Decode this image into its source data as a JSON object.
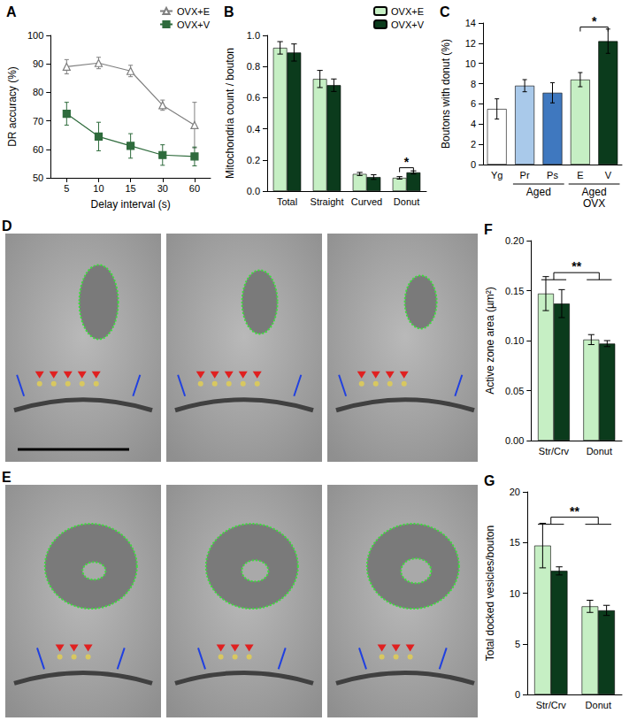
{
  "chart_data": [
    {
      "title": "A",
      "type": "line",
      "categories": [
        "5",
        "10",
        "15",
        "30",
        "60"
      ],
      "x_label": "Delay interval (s)",
      "y_label": "DR accuracy (%)",
      "ylim": [
        50,
        100
      ],
      "yticks": [
        50,
        60,
        70,
        80,
        90,
        100
      ],
      "grid": false,
      "legend": "upper right",
      "series": [
        {
          "name": "OVX+E",
          "color": "#7f7f7f",
          "marker": "open-triangle",
          "values": [
            89,
            90.3,
            87.5,
            75.5,
            68.5
          ],
          "errors": [
            2.5,
            2,
            2,
            1.8,
            8
          ]
        },
        {
          "name": "OVX+V",
          "color": "#2e6b3c",
          "marker": "square",
          "values": [
            72.5,
            64.5,
            61.2,
            58,
            57.5
          ],
          "errors": [
            4,
            5,
            4.3,
            3.6,
            3.3
          ]
        }
      ]
    },
    {
      "title": "B",
      "type": "bar",
      "categories": [
        "Total",
        "Straight",
        "Curved",
        "Donut"
      ],
      "y_label": "Mitochondria count / bouton",
      "ylim": [
        0,
        1
      ],
      "yticks": [
        {
          "value": 0,
          "label": "0.0"
        },
        0.2,
        0.4,
        0.6,
        0.8,
        {
          "value": 1,
          "label": "1.0"
        }
      ],
      "grid": false,
      "legend": "upper right",
      "series": [
        {
          "name": "OVX+E",
          "color": "#c6efc4",
          "values": [
            0.92,
            0.72,
            0.11,
            0.085
          ],
          "errors": [
            0.04,
            0.055,
            0.01,
            0.008
          ]
        },
        {
          "name": "OVX+V",
          "color": "#0b3b1c",
          "values": [
            0.89,
            0.68,
            0.09,
            0.12
          ],
          "errors": [
            0.055,
            0.04,
            0.015,
            0.01
          ]
        }
      ],
      "annotations": [
        {
          "text": "*",
          "categories": [
            "Donut"
          ],
          "y": 0.15
        }
      ]
    },
    {
      "title": "C",
      "type": "bar",
      "categories": [
        "Yg",
        "Pr",
        "Ps",
        "E",
        "V"
      ],
      "y_label": "Boutons with donut (%)",
      "ylim": [
        0,
        14
      ],
      "yticks": [
        0,
        2,
        4,
        6,
        8,
        10,
        12,
        14
      ],
      "grid": false,
      "values": [
        5.5,
        7.8,
        7.1,
        8.4,
        12.2
      ],
      "errors": [
        1.0,
        0.6,
        1.0,
        0.7,
        1.2
      ],
      "colors": [
        "#ffffff",
        "#a9c9ea",
        "#3f78bf",
        "#c6efc4",
        "#0b3b1c"
      ],
      "groups": [
        {
          "label": "Aged",
          "categories": [
            "Pr",
            "Ps"
          ]
        },
        {
          "label": "Aged OVX",
          "categories": [
            "E",
            "V"
          ]
        }
      ],
      "annotations": [
        {
          "text": "*",
          "categories": [
            "E",
            "V"
          ],
          "y": 13.6
        }
      ]
    },
    {
      "title": "F",
      "type": "bar",
      "categories": [
        "Str/Crv",
        "Donut"
      ],
      "y_label": "Active zone area (µm²)",
      "ylim": [
        0,
        0.2
      ],
      "yticks": [
        {
          "value": 0,
          "label": "0.00"
        },
        {
          "value": 0.05,
          "label": "0.05"
        },
        {
          "value": 0.1,
          "label": "0.10"
        },
        {
          "value": 0.15,
          "label": "0.15"
        },
        {
          "value": 0.2,
          "label": "0.20"
        }
      ],
      "grid": false,
      "series": [
        {
          "name": "OVX+E",
          "color": "#c6efc4",
          "values": [
            0.147,
            0.101
          ],
          "errors": [
            0.017,
            0.005
          ]
        },
        {
          "name": "OVX+V",
          "color": "#0b3b1c",
          "values": [
            0.137,
            0.097
          ],
          "errors": [
            0.014,
            0.003
          ]
        }
      ],
      "annotations": [
        {
          "text": "**",
          "categories": [
            "Str/Crv",
            "Donut"
          ],
          "y": 0.168
        }
      ]
    },
    {
      "title": "G",
      "type": "bar",
      "categories": [
        "Str/Crv",
        "Donut"
      ],
      "y_label": "Total docked vesicles/bouton",
      "ylim": [
        0,
        20
      ],
      "yticks": [
        0,
        5,
        10,
        15,
        20
      ],
      "grid": false,
      "series": [
        {
          "name": "OVX+E",
          "color": "#c6efc4",
          "values": [
            14.7,
            8.7
          ],
          "errors": [
            2.2,
            0.6
          ]
        },
        {
          "name": "OVX+V",
          "color": "#0b3b1c",
          "values": [
            12.2,
            8.3
          ],
          "errors": [
            0.4,
            0.5
          ]
        }
      ],
      "annotations": [
        {
          "text": "**",
          "categories": [
            "Str/Crv",
            "Donut"
          ],
          "y": 17.5
        }
      ]
    }
  ],
  "em_panels": [
    {
      "label": "D"
    },
    {
      "label": "E"
    }
  ]
}
